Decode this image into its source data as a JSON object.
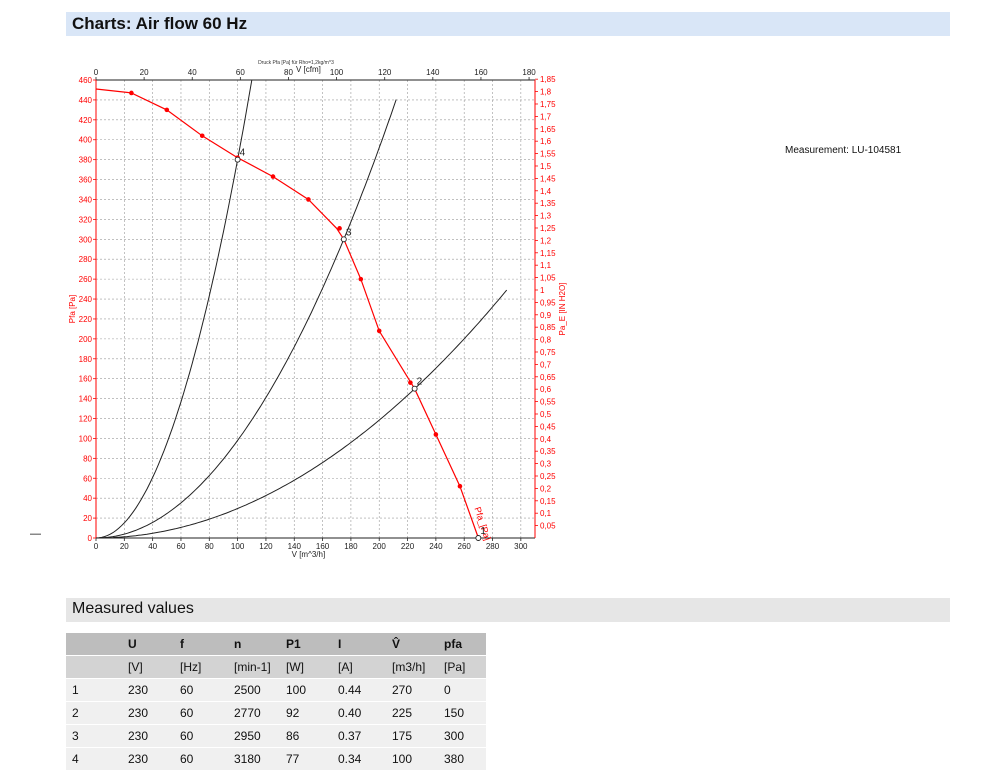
{
  "header": {
    "title": "Charts: Air flow 60 Hz"
  },
  "measurement_note": "Measurement: LU-104581",
  "left_mark": "—",
  "chart_data": {
    "type": "line",
    "title": "Druck Pfa [Pa] für Rho=1,2kg/m^3",
    "xlabel": "V [m^3/h]",
    "xlabel_top": "V [cfm]",
    "ylabel": "Pfa [Pa]",
    "ylabel_right": "Pa_E [IN H2O]",
    "xlim": [
      0,
      310
    ],
    "ylim": [
      0,
      460
    ],
    "x_ticks": [
      "0",
      "20",
      "40",
      "60",
      "80",
      "100",
      "120",
      "140",
      "160",
      "180",
      "200",
      "220",
      "240",
      "260",
      "280",
      "300"
    ],
    "y_ticks": [
      "0",
      "20",
      "40",
      "60",
      "80",
      "100",
      "120",
      "140",
      "160",
      "180",
      "200",
      "220",
      "240",
      "260",
      "280",
      "300",
      "320",
      "340",
      "360",
      "380",
      "400",
      "420",
      "440",
      "460"
    ],
    "top_axis": {
      "factor": 0.5886,
      "ticks": [
        "0",
        "20",
        "40",
        "60",
        "80",
        "100",
        "120",
        "140",
        "160",
        "180"
      ]
    },
    "right_axis": {
      "factor": 0.0040146,
      "ticks": [
        "0,05",
        "0,1",
        "0,15",
        "0,2",
        "0,25",
        "0,3",
        "0,35",
        "0,4",
        "0,45",
        "0,5",
        "0,55",
        "0,6",
        "0,65",
        "0,7",
        "0,75",
        "0,8",
        "0,85",
        "0,9",
        "0,95",
        "1",
        "1,05",
        "1,1",
        "1,15",
        "1,2",
        "1,25",
        "1,3",
        "1,35",
        "1,4",
        "1,45",
        "1,5",
        "1,55",
        "1,6",
        "1,65",
        "1,7",
        "1,75",
        "1,8",
        "1,85"
      ]
    },
    "grid": true,
    "colors": {
      "fan_curve": "#ff0000",
      "system_curve": "#222222",
      "axis_red": "#ff0000"
    },
    "fan_curve": {
      "name": "Pfa_[Pa]",
      "points": [
        {
          "x": 0,
          "y": 451
        },
        {
          "x": 25,
          "y": 447
        },
        {
          "x": 50,
          "y": 430
        },
        {
          "x": 75,
          "y": 404
        },
        {
          "x": 100,
          "y": 382
        },
        {
          "x": 125,
          "y": 363
        },
        {
          "x": 150,
          "y": 340
        },
        {
          "x": 170,
          "y": 311
        },
        {
          "x": 175,
          "y": 300
        },
        {
          "x": 187,
          "y": 260
        },
        {
          "x": 200,
          "y": 208
        },
        {
          "x": 225,
          "y": 150
        },
        {
          "x": 240,
          "y": 104
        },
        {
          "x": 257,
          "y": 52
        },
        {
          "x": 270,
          "y": 0
        }
      ],
      "markers": [
        {
          "x": 25,
          "y": 447
        },
        {
          "x": 50,
          "y": 430
        },
        {
          "x": 75,
          "y": 404
        },
        {
          "x": 100,
          "y": 382
        },
        {
          "x": 125,
          "y": 363
        },
        {
          "x": 150,
          "y": 340
        },
        {
          "x": 172,
          "y": 311
        },
        {
          "x": 187,
          "y": 260
        },
        {
          "x": 200,
          "y": 208
        },
        {
          "x": 222,
          "y": 156
        },
        {
          "x": 240,
          "y": 104
        },
        {
          "x": 257,
          "y": 52
        }
      ]
    },
    "system_curves": [
      {
        "k": 0.038,
        "xmax": 110
      },
      {
        "k": 0.0098,
        "xmax": 213
      },
      {
        "k": 0.00296,
        "xmax": 290
      }
    ],
    "operating_points": [
      {
        "label": "1",
        "x": 270,
        "y": 0
      },
      {
        "label": "2",
        "x": 225,
        "y": 150
      },
      {
        "label": "3",
        "x": 175,
        "y": 300
      },
      {
        "label": "4",
        "x": 100,
        "y": 380
      }
    ]
  },
  "measured": {
    "title": "Measured values",
    "columns": [
      {
        "name": "",
        "unit": ""
      },
      {
        "name": "U",
        "unit": "[V]"
      },
      {
        "name": "f",
        "unit": "[Hz]"
      },
      {
        "name": "n",
        "unit": "[min-1]"
      },
      {
        "name": "P1",
        "unit": "[W]"
      },
      {
        "name": "I",
        "unit": "[A]"
      },
      {
        "name": "V̂",
        "unit": "[m3/h]"
      },
      {
        "name": "pfa",
        "unit": "[Pa]"
      }
    ],
    "rows": [
      [
        "1",
        "230",
        "60",
        "2500",
        "100",
        "0.44",
        "270",
        "0"
      ],
      [
        "2",
        "230",
        "60",
        "2770",
        "92",
        "0.40",
        "225",
        "150"
      ],
      [
        "3",
        "230",
        "60",
        "2950",
        "86",
        "0.37",
        "175",
        "300"
      ],
      [
        "4",
        "230",
        "60",
        "3180",
        "77",
        "0.34",
        "100",
        "380"
      ]
    ]
  }
}
